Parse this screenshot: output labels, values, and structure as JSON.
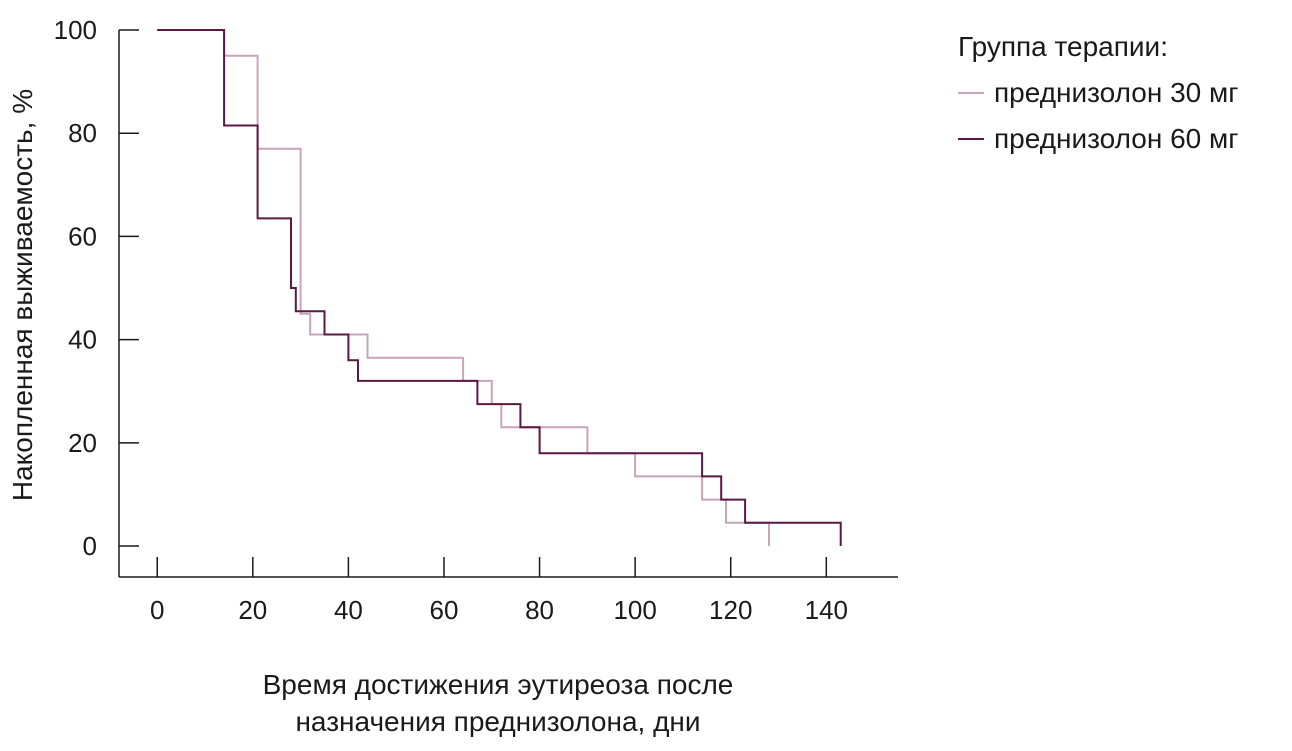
{
  "chart_data": {
    "type": "line",
    "step": true,
    "xlabel_lines": [
      "Время достижения эутиреоза после",
      "назначения преднизолона, дни"
    ],
    "ylabel": "Накопленная выживаемость, %",
    "xlim": [
      -8,
      155
    ],
    "ylim": [
      -6,
      100
    ],
    "xticks": [
      "0",
      "20",
      "40",
      "60",
      "80",
      "100",
      "120",
      "140"
    ],
    "yticks": [
      "0",
      "20",
      "40",
      "60",
      "80",
      "100"
    ],
    "grid": false,
    "legend": {
      "title": "Группа терапии:",
      "placement": "top-right"
    },
    "series": [
      {
        "name": "преднизолон 30 мг",
        "color": "#c9a4bb",
        "x": [
          0,
          14,
          21,
          30,
          32,
          44,
          64,
          70,
          72,
          90,
          100,
          114,
          119,
          128
        ],
        "y": [
          100,
          95,
          77,
          45,
          41,
          36.5,
          32,
          27.5,
          23,
          18,
          13.5,
          9,
          4.5,
          0
        ]
      },
      {
        "name": "преднизолон 60 мг",
        "color": "#5c1744",
        "x": [
          0,
          14,
          21,
          28,
          29,
          30,
          35,
          40,
          42,
          67,
          76,
          80,
          114,
          118,
          123,
          143
        ],
        "y": [
          100,
          81.5,
          63.5,
          50,
          45.5,
          45.5,
          41,
          36,
          32,
          27.5,
          23,
          18,
          13.5,
          9,
          4.5,
          0
        ]
      }
    ]
  }
}
